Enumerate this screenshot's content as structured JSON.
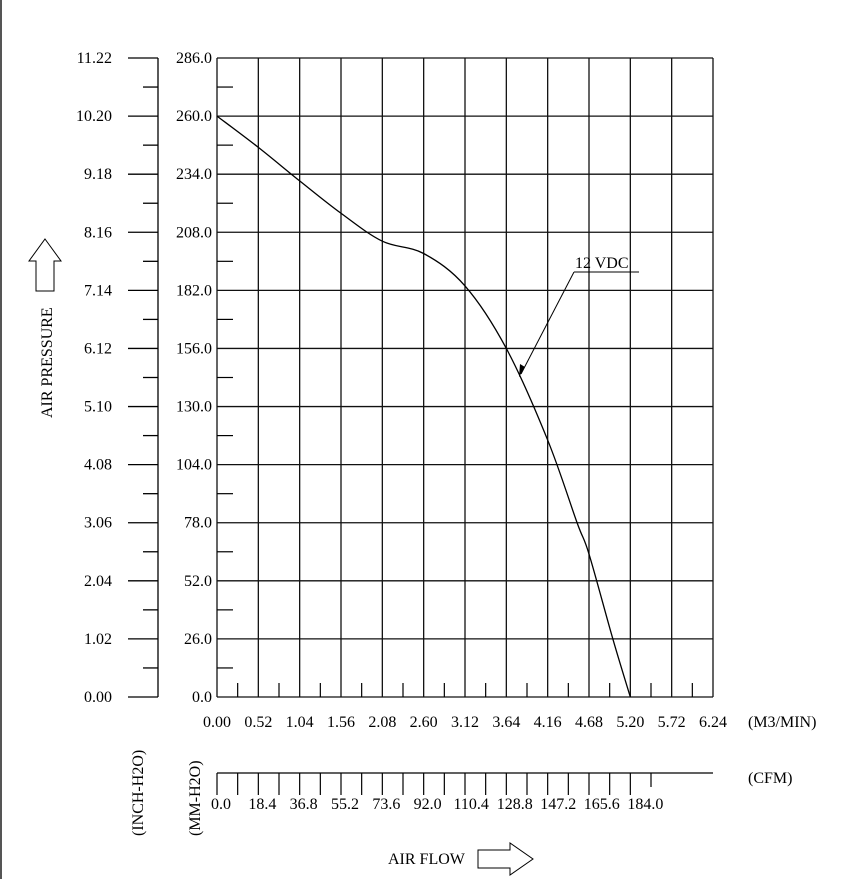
{
  "chart_data": {
    "type": "line",
    "title": "",
    "xlabel": "AIR FLOW",
    "ylabel": "AIR PRESSURE",
    "x_unit_primary": "(M3/MIN)",
    "x_unit_secondary": "(CFM)",
    "y_unit_primary": "(MM-H2O)",
    "y_unit_secondary": "(INCH-H2O)",
    "xlim": [
      0,
      6.24
    ],
    "ylim": [
      0,
      286
    ],
    "grid": true,
    "x_ticks": [
      "0.00",
      "0.52",
      "1.04",
      "1.56",
      "2.08",
      "2.60",
      "3.12",
      "3.64",
      "4.16",
      "4.68",
      "5.20",
      "5.72",
      "6.24"
    ],
    "x2_ticks": [
      "0.0",
      "18.4",
      "36.8",
      "55.2",
      "73.6",
      "92.0",
      "110.4",
      "128.8",
      "147.2",
      "165.6",
      "184.0"
    ],
    "y_ticks": [
      "0.0",
      "26.0",
      "52.0",
      "78.0",
      "104.0",
      "130.0",
      "156.0",
      "182.0",
      "208.0",
      "234.0",
      "260.0",
      "286.0"
    ],
    "y2_ticks": [
      "0.00",
      "1.02",
      "2.04",
      "3.06",
      "4.08",
      "5.10",
      "6.12",
      "7.14",
      "8.16",
      "9.18",
      "10.20",
      "11.22"
    ],
    "series": [
      {
        "name": "12 VDC",
        "x": [
          0,
          0.52,
          1.04,
          1.56,
          2.08,
          2.6,
          3.12,
          3.64,
          4.16,
          4.53,
          4.68,
          4.98,
          5.2
        ],
        "y": [
          260,
          246,
          231,
          216.5,
          204,
          198.5,
          184,
          156,
          115,
          78,
          64,
          26,
          0
        ]
      }
    ],
    "annotation": {
      "text": "12 VDC",
      "points_to_x": 3.64,
      "points_to_y": 145
    }
  }
}
